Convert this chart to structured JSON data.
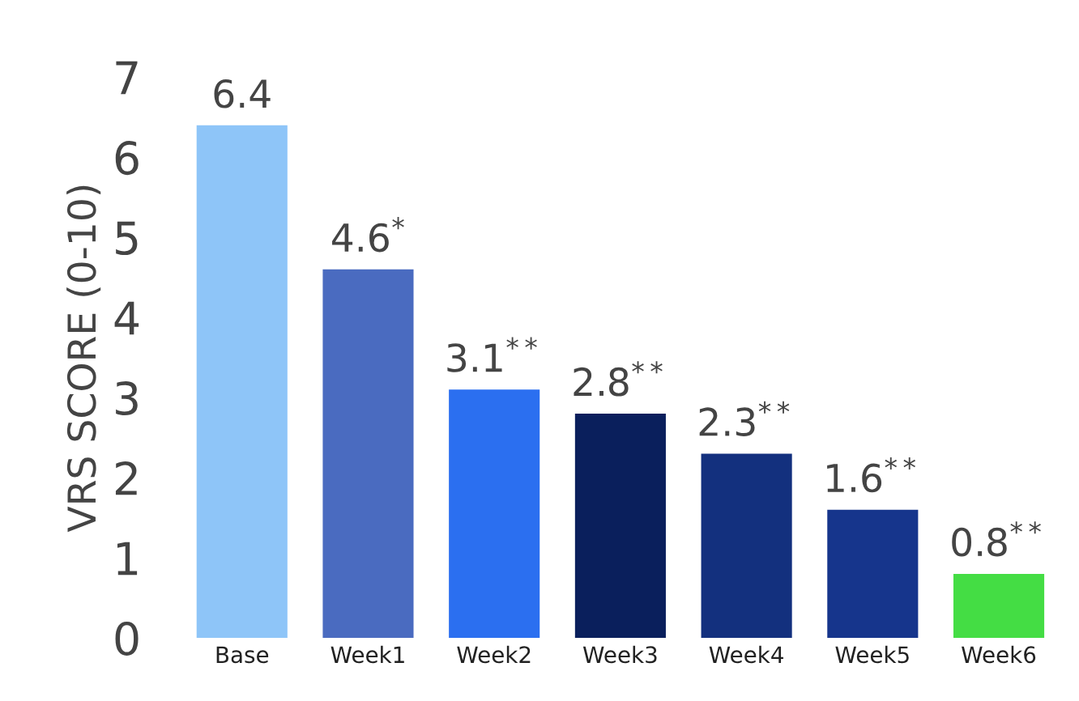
{
  "chart_data": {
    "type": "bar",
    "ylabel": "VRS SCORE (0-10)",
    "categories": [
      "Base",
      "Week1",
      "Week2",
      "Week3",
      "Week4",
      "Week5",
      "Week6"
    ],
    "values": [
      6.4,
      4.6,
      3.1,
      2.8,
      2.3,
      1.6,
      0.8
    ],
    "colors": [
      "#8ec5f8",
      "#4a6bc0",
      "#2b6ff0",
      "#0a1f5c",
      "#13307e",
      "#16358c",
      "#44dd44"
    ],
    "value_labels": [
      "6.4",
      "4.6$^{*}$",
      "3.1$^{**}$",
      "2.8$^{**}$",
      "2.3$^{**}$",
      "1.6$^{**}$",
      "0.8$^{**}$"
    ],
    "ylim": [
      0,
      7
    ],
    "yticks": [
      0,
      1,
      2,
      3,
      4,
      5,
      6,
      7
    ],
    "grid": false,
    "legend": false
  }
}
